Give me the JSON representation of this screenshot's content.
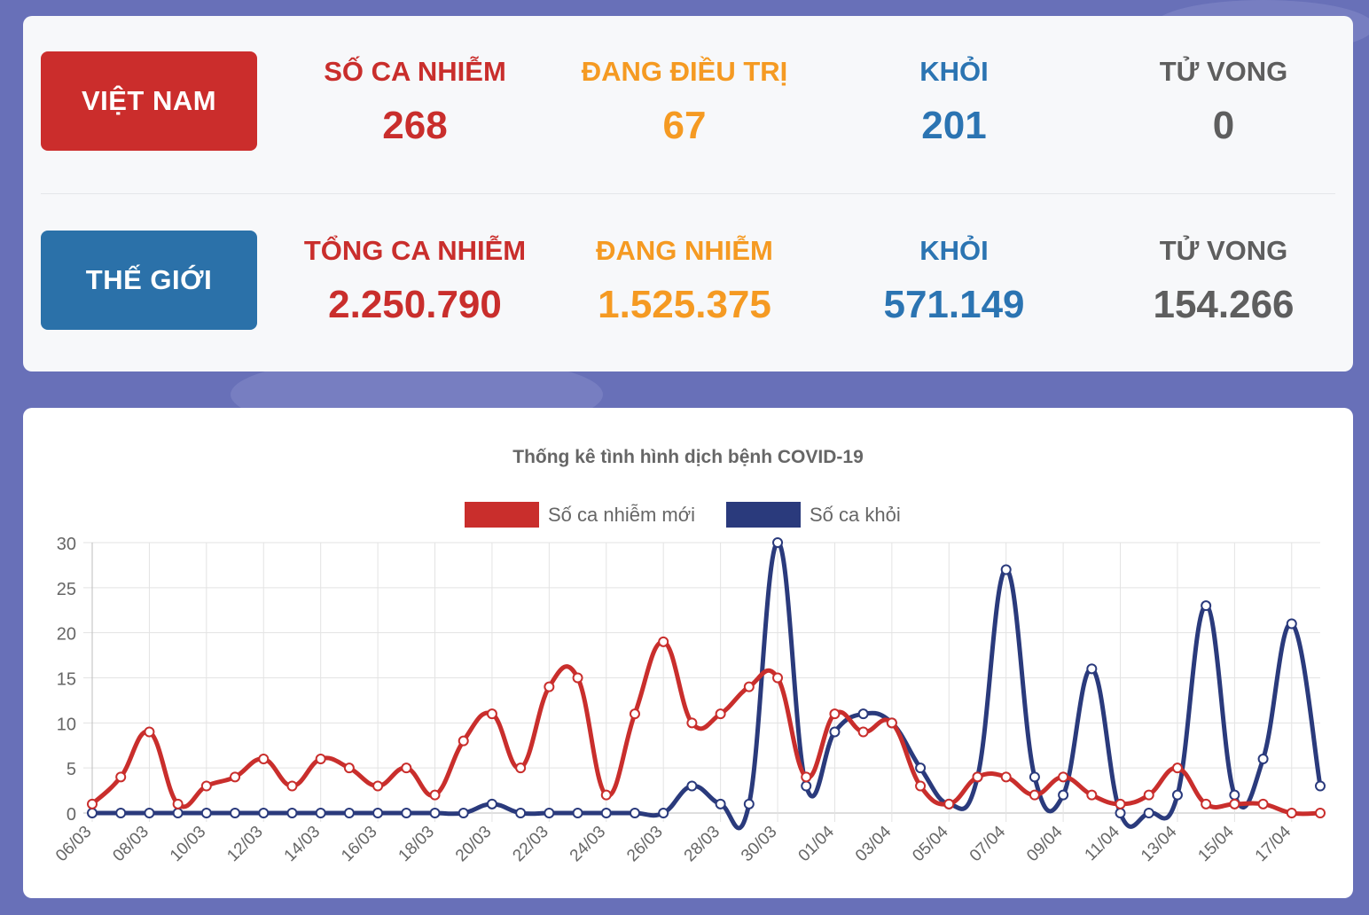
{
  "vietnam": {
    "button_label": "VIỆT NAM",
    "stats": [
      {
        "label": "SỐ CA NHIỄM",
        "value": "268"
      },
      {
        "label": "ĐANG ĐIỀU TRỊ",
        "value": "67"
      },
      {
        "label": "KHỎI",
        "value": "201"
      },
      {
        "label": "TỬ VONG",
        "value": "0"
      }
    ]
  },
  "world": {
    "button_label": "THẾ GIỚI",
    "stats": [
      {
        "label": "TỔNG CA NHIỄM",
        "value": "2.250.790"
      },
      {
        "label": "ĐANG NHIỄM",
        "value": "1.525.375"
      },
      {
        "label": "KHỎI",
        "value": "571.149"
      },
      {
        "label": "TỬ VONG",
        "value": "154.266"
      }
    ]
  },
  "colors": {
    "red": "#c92e2c",
    "orange": "#f59a22",
    "blue": "#2b74b2",
    "gray": "#5e5e5e",
    "series_new": "#c92e2c",
    "series_recovered": "#2a3a7c"
  },
  "chart_data": {
    "type": "line",
    "title": "Thống kê tình hình dịch bệnh COVID-19",
    "legend_position": "top",
    "grid": true,
    "ylim": [
      0,
      30
    ],
    "yticks": [
      0,
      5,
      10,
      15,
      20,
      25,
      30
    ],
    "categories": [
      "06/03",
      "07/03",
      "08/03",
      "09/03",
      "10/03",
      "11/03",
      "12/03",
      "13/03",
      "14/03",
      "15/03",
      "16/03",
      "17/03",
      "18/03",
      "19/03",
      "20/03",
      "21/03",
      "22/03",
      "23/03",
      "24/03",
      "25/03",
      "26/03",
      "27/03",
      "28/03",
      "29/03",
      "30/03",
      "31/03",
      "01/04",
      "02/04",
      "03/04",
      "04/04",
      "05/04",
      "06/04",
      "07/04",
      "08/04",
      "09/04",
      "10/04",
      "11/04",
      "12/04",
      "13/04",
      "14/04",
      "15/04",
      "16/04",
      "17/04",
      "18/04"
    ],
    "tick_labels": [
      "06/03",
      "08/03",
      "10/03",
      "12/03",
      "14/03",
      "16/03",
      "18/03",
      "20/03",
      "22/03",
      "24/03",
      "26/03",
      "28/03",
      "30/03",
      "01/04",
      "03/04",
      "05/04",
      "07/04",
      "09/04",
      "11/04",
      "13/04",
      "15/04",
      "17/04"
    ],
    "series": [
      {
        "name": "Số ca nhiễm mới",
        "values": [
          1,
          4,
          9,
          1,
          3,
          4,
          6,
          3,
          6,
          5,
          3,
          5,
          2,
          8,
          11,
          5,
          14,
          15,
          2,
          11,
          19,
          10,
          11,
          14,
          15,
          4,
          11,
          9,
          10,
          3,
          1,
          4,
          4,
          2,
          4,
          2,
          1,
          2,
          5,
          1,
          1,
          1,
          0,
          0
        ]
      },
      {
        "name": "Số ca khỏi",
        "values": [
          0,
          0,
          0,
          0,
          0,
          0,
          0,
          0,
          0,
          0,
          0,
          0,
          0,
          0,
          1,
          0,
          0,
          0,
          0,
          0,
          0,
          3,
          1,
          1,
          30,
          3,
          9,
          11,
          10,
          5,
          1,
          4,
          27,
          4,
          2,
          16,
          0,
          0,
          2,
          23,
          2,
          6,
          21,
          3
        ]
      }
    ]
  }
}
